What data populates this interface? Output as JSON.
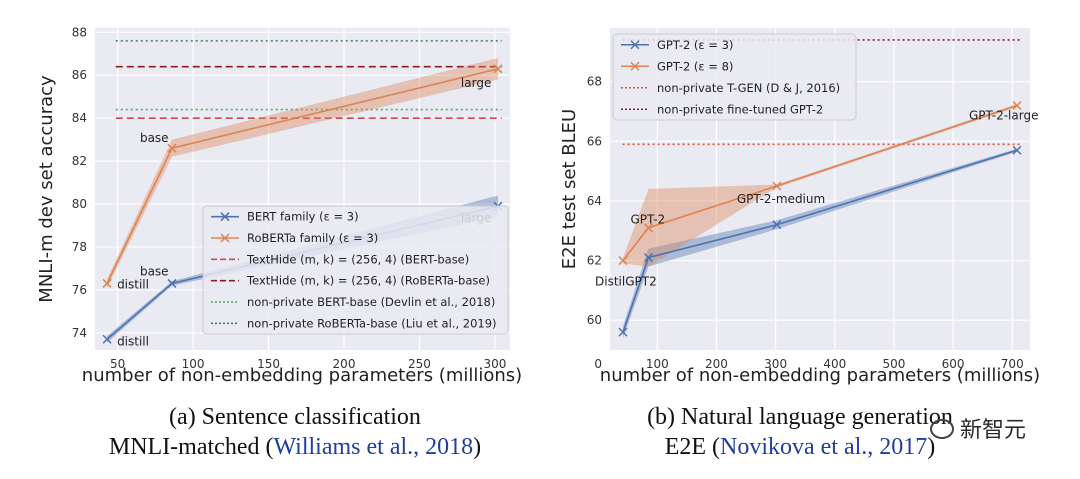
{
  "chart_data": [
    {
      "type": "line",
      "ylabel": "MNLI-m dev set accuracy",
      "xlabel": "number of non-embedding parameters (millions)",
      "xlim": [
        35,
        310
      ],
      "ylim": [
        73.2,
        88.2
      ],
      "xticks": [
        50,
        100,
        150,
        200,
        250,
        300
      ],
      "yticks": [
        74,
        76,
        78,
        80,
        82,
        84,
        86,
        88
      ],
      "grid": true,
      "legend_position": "lower-right",
      "series": [
        {
          "name": "BERT family (ε = 3)",
          "color": "#4c72b0",
          "marker": "x",
          "x": [
            43,
            86,
            302
          ],
          "y": [
            73.7,
            76.3,
            79.9
          ],
          "band": [
            0.15,
            0.1,
            0.5
          ]
        },
        {
          "name": "RoBERTa family (ε = 3)",
          "color": "#dd8452",
          "marker": "x",
          "x": [
            43,
            86,
            302
          ],
          "y": [
            76.3,
            82.6,
            86.3
          ],
          "band": [
            0.2,
            0.4,
            0.5
          ]
        }
      ],
      "reference_lines": [
        {
          "name": "TextHide (m, k) = (256, 4) (BERT-base)",
          "y": 84.0,
          "color": "#c44e52",
          "style": "dashed"
        },
        {
          "name": "TextHide (m, k) = (256, 4) (RoBERTa-base)",
          "y": 86.4,
          "color": "#8c1c1c",
          "style": "dashed"
        },
        {
          "name": "non-private BERT-base (Devlin et al., 2018)",
          "y": 84.4,
          "color": "#55a868",
          "style": "dotted"
        },
        {
          "name": "non-private RoBERTa-base (Liu et al., 2019)",
          "y": 87.6,
          "color": "#2d8a4e",
          "style": "dotted"
        }
      ],
      "annotations": [
        {
          "text": "distill",
          "x": 43,
          "y": 76.3
        },
        {
          "text": "base",
          "x": 86,
          "y": 82.6
        },
        {
          "text": "large",
          "x": 302,
          "y": 86.3
        },
        {
          "text": "distill",
          "x": 43,
          "y": 73.7
        },
        {
          "text": "base",
          "x": 86,
          "y": 76.3
        },
        {
          "text": "large",
          "x": 302,
          "y": 79.9
        }
      ]
    },
    {
      "type": "line",
      "ylabel": "E2E test set BLEU",
      "xlabel": "number of non-embedding parameters (millions)",
      "xlim": [
        20,
        730
      ],
      "ylim": [
        59.0,
        69.8
      ],
      "xticks": [
        0,
        100,
        200,
        300,
        400,
        500,
        600,
        700
      ],
      "yticks": [
        60,
        62,
        64,
        66,
        68
      ],
      "grid": true,
      "legend_position": "upper-left",
      "series": [
        {
          "name": "GPT-2 (ε = 3)",
          "color": "#4c72b0",
          "marker": "x",
          "x": [
            42,
            85,
            302,
            708
          ],
          "y": [
            59.6,
            62.1,
            63.2,
            65.7
          ],
          "band": [
            0.2,
            0.3,
            0.15,
            0.05
          ]
        },
        {
          "name": "GPT-2 (ε = 8)",
          "color": "#dd8452",
          "marker": "x",
          "x": [
            42,
            85,
            302,
            708
          ],
          "y": [
            62.0,
            63.1,
            64.5,
            67.2
          ],
          "band": [
            0.1,
            1.3,
            0.05,
            0.05
          ]
        }
      ],
      "reference_lines": [
        {
          "name": "non-private T-GEN (D & J, 2016)",
          "y": 65.9,
          "color": "#e0553a",
          "style": "dotted"
        },
        {
          "name": "non-private fine-tuned GPT-2",
          "y": 69.4,
          "color": "#a0182a",
          "style": "dotted"
        }
      ],
      "annotations": [
        {
          "text": "DistilGPT2",
          "x": 42,
          "y": 61.3
        },
        {
          "text": "GPT-2",
          "x": 85,
          "y": 62.7
        },
        {
          "text": "GPT-2-medium",
          "x": 302,
          "y": 63.6
        },
        {
          "text": "GPT-2-large",
          "x": 708,
          "y": 66.4
        }
      ]
    }
  ],
  "captions": {
    "a_title": "(a) Sentence classification",
    "a_dataset": "MNLI-matched (",
    "a_cite": "Williams et al., 2018",
    "a_close": ")",
    "b_title": "(b) Natural language generation",
    "b_dataset": "E2E (",
    "b_cite": "Novikova et al., 2017",
    "b_close": ")"
  },
  "watermark": "新智元"
}
